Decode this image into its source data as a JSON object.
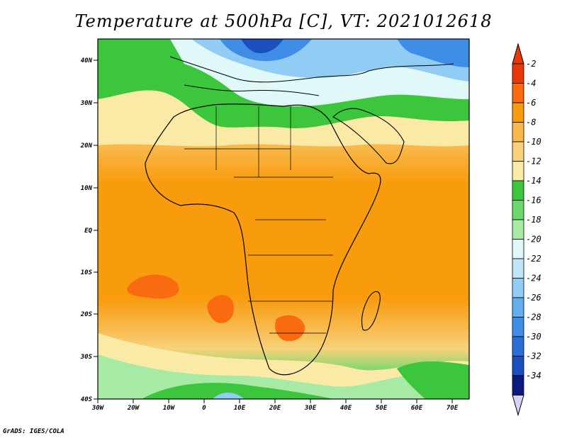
{
  "title": "Temperature at 500hPa [C], VT: 2021012618",
  "credit": "GrADS: IGES/COLA",
  "map": {
    "lat_labels": [
      "40N",
      "30N",
      "20N",
      "10N",
      "EQ",
      "10S",
      "20S",
      "30S",
      "40S"
    ],
    "lon_labels": [
      "30W",
      "20W",
      "10W",
      "0",
      "10E",
      "20E",
      "30E",
      "40E",
      "50E",
      "60E",
      "70E"
    ]
  },
  "colorbar": {
    "labels": [
      "-2",
      "-4",
      "-6",
      "-8",
      "-10",
      "-12",
      "-14",
      "-16",
      "-18",
      "-20",
      "-22",
      "-24",
      "-26",
      "-28",
      "-30",
      "-32",
      "-34"
    ],
    "colors": [
      "#e8380a",
      "#fa6a10",
      "#f89c0e",
      "#f8b84a",
      "#f8d27a",
      "#faeaa6",
      "#3cc63c",
      "#6cd86c",
      "#a6eaa6",
      "#e0f8f8",
      "#c0e4f8",
      "#90ccf4",
      "#62aef0",
      "#3e8ee8",
      "#2a6ed8",
      "#1a4fbf",
      "#0a1a80"
    ],
    "top_arrow_color": "#e8380a",
    "bottom_arrow_color": "#d8d0f8"
  }
}
